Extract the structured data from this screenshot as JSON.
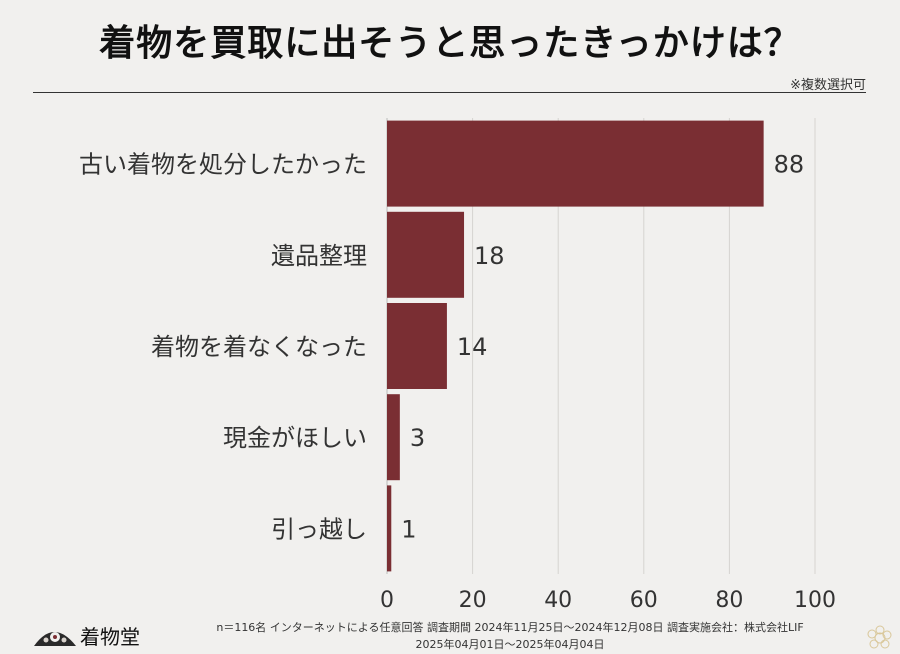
{
  "chart_data": {
    "type": "bar",
    "orientation": "horizontal",
    "title": "着物を買取に出そうと思ったきっかけは？",
    "note": "※複数選択可",
    "categories": [
      "古い着物を処分したかった",
      "遺品整理",
      "着物を着なくなった",
      "現金がほしい",
      "引っ越し"
    ],
    "values": [
      88,
      18,
      14,
      3,
      1
    ],
    "xlim": [
      0,
      100
    ],
    "xticks": [
      0,
      20,
      40,
      60,
      80,
      100
    ],
    "grid": true,
    "bar_color": "#7a2e33"
  },
  "logo": {
    "text": "着物堂"
  },
  "footer": {
    "line1": "n＝116名 インターネットによる任意回答 調査期間 2024年11月25日〜2024年12月08日 調査実施会社：株式会社LIF",
    "line2": "2025年04月01日〜2025年04月04日"
  }
}
